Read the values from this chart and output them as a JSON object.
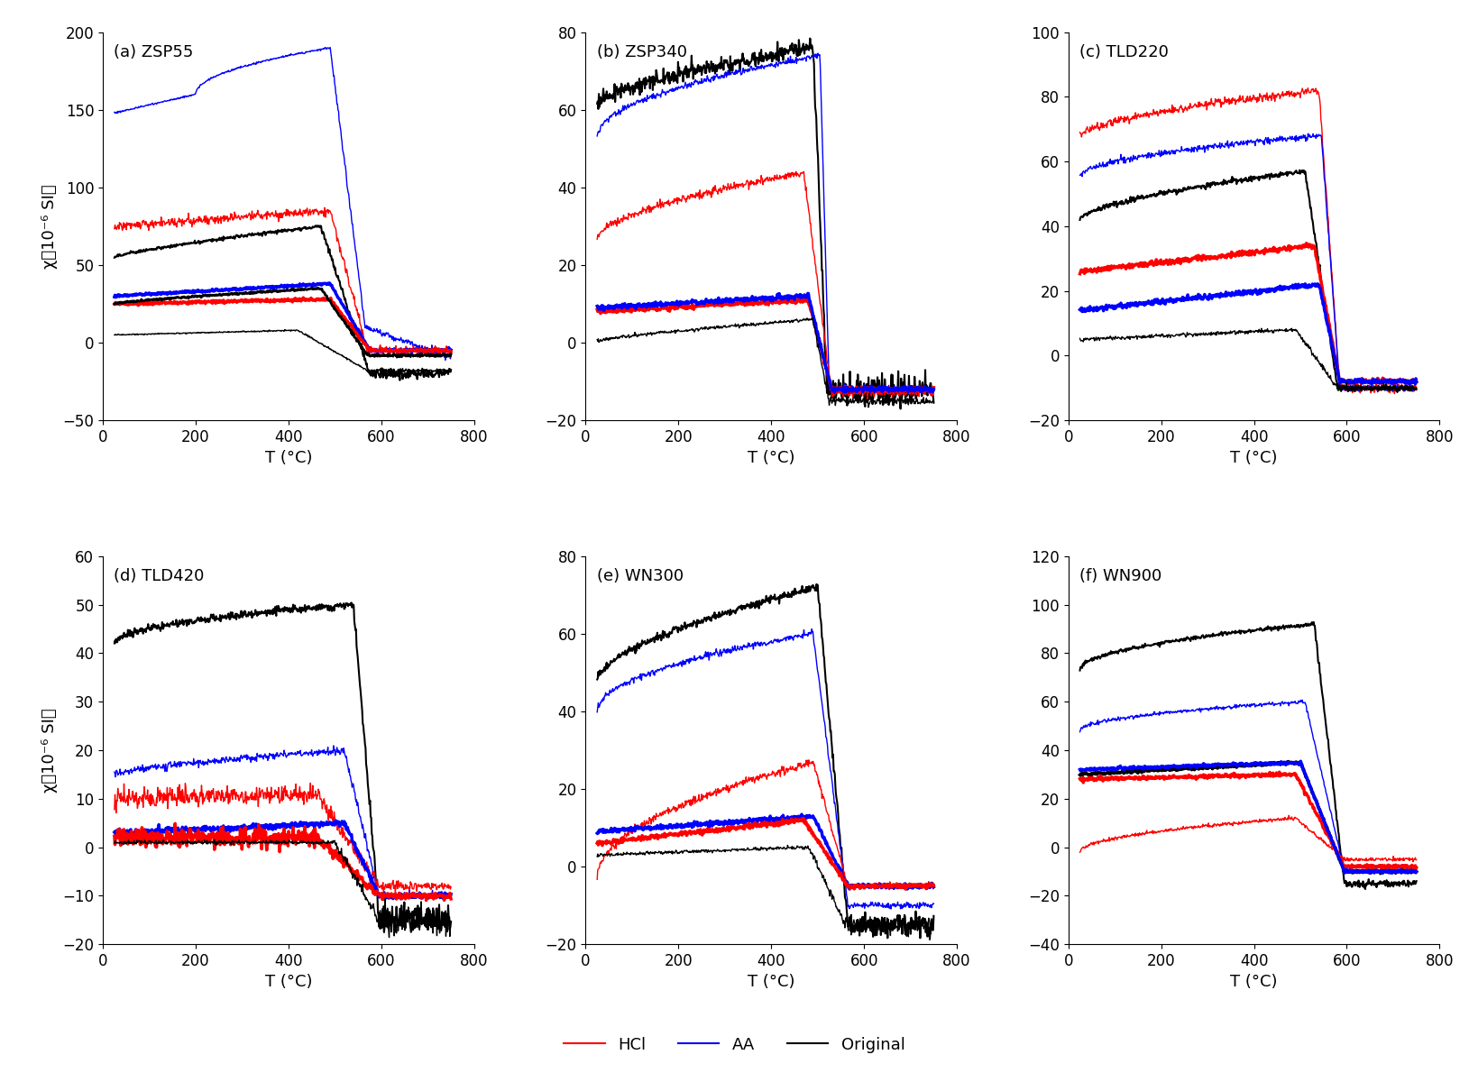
{
  "panels": [
    {
      "label": "(a) ZSP55",
      "ylim": [
        -50,
        200
      ],
      "yticks": [
        -50,
        0,
        50,
        100,
        150,
        200
      ]
    },
    {
      "label": "(b) ZSP340",
      "ylim": [
        -20,
        80
      ],
      "yticks": [
        -20,
        0,
        20,
        40,
        60,
        80
      ]
    },
    {
      "label": "(c) TLD220",
      "ylim": [
        -20,
        100
      ],
      "yticks": [
        -20,
        0,
        20,
        40,
        60,
        80,
        100
      ]
    },
    {
      "label": "(d) TLD420",
      "ylim": [
        -20,
        60
      ],
      "yticks": [
        -20,
        -10,
        0,
        10,
        20,
        30,
        40,
        50,
        60
      ]
    },
    {
      "label": "(e) WN300",
      "ylim": [
        -20,
        80
      ],
      "yticks": [
        -20,
        0,
        20,
        40,
        60,
        80
      ]
    },
    {
      "label": "(f) WN900",
      "ylim": [
        -40,
        120
      ],
      "yticks": [
        -40,
        -20,
        0,
        20,
        40,
        60,
        80,
        100,
        120
      ]
    }
  ],
  "xlim": [
    0,
    800
  ],
  "xticks": [
    0,
    200,
    400,
    600,
    800
  ],
  "xlabel": "T (°C)",
  "ylabel": "χ（10⁻⁶ SI）",
  "legend": [
    {
      "label": "HCl",
      "color": "#ff0000"
    },
    {
      "label": "AA",
      "color": "#0000ff"
    },
    {
      "label": "Original",
      "color": "#000000"
    }
  ],
  "background_color": "#ffffff"
}
